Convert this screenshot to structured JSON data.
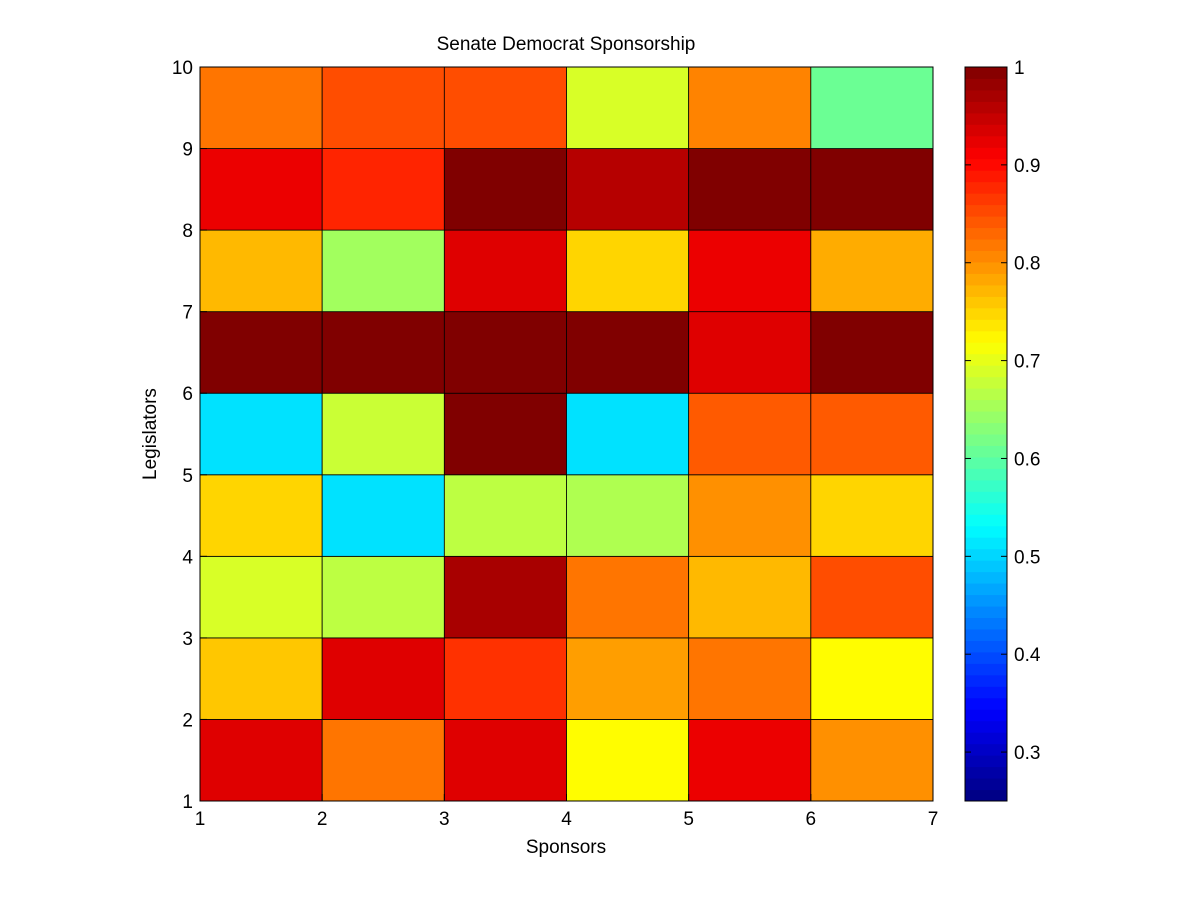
{
  "chart_data": {
    "type": "heatmap",
    "title": "Senate Democrat Sponsorship",
    "xlabel": "Sponsors",
    "ylabel": "Legislators",
    "xlim": [
      1,
      7
    ],
    "ylim": [
      1,
      10
    ],
    "x_ticks": [
      "1",
      "2",
      "3",
      "4",
      "5",
      "6",
      "7"
    ],
    "y_ticks": [
      "1",
      "2",
      "3",
      "4",
      "5",
      "6",
      "7",
      "8",
      "9",
      "10"
    ],
    "colormap": "jet",
    "color_range": [
      0.25,
      1.0
    ],
    "colorbar_ticks": [
      "0.3",
      "0.4",
      "0.5",
      "0.6",
      "0.7",
      "0.8",
      "0.9",
      "1"
    ],
    "grid": true,
    "rows_bottom_to_top": [
      [
        0.93,
        0.82,
        0.93,
        0.72,
        0.92,
        0.8
      ],
      [
        0.76,
        0.93,
        0.87,
        0.79,
        0.82,
        0.72
      ],
      [
        0.69,
        0.67,
        0.97,
        0.82,
        0.77,
        0.85
      ],
      [
        0.75,
        0.51,
        0.67,
        0.66,
        0.8,
        0.75
      ],
      [
        0.51,
        0.68,
        1.0,
        0.51,
        0.84,
        0.84
      ],
      [
        1.0,
        1.0,
        1.0,
        1.0,
        0.93,
        1.0
      ],
      [
        0.77,
        0.65,
        0.93,
        0.75,
        0.92,
        0.78
      ],
      [
        0.92,
        0.88,
        1.0,
        0.96,
        1.0,
        1.0
      ],
      [
        0.82,
        0.85,
        0.85,
        0.69,
        0.81,
        0.61
      ]
    ]
  }
}
